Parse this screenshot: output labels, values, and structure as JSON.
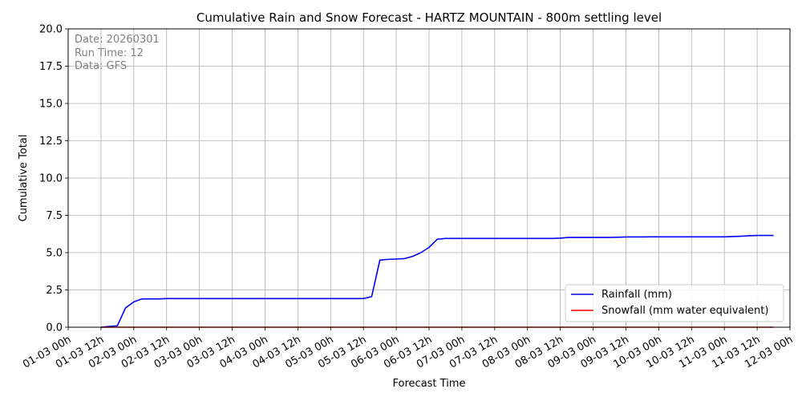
{
  "chart_data": {
    "type": "line",
    "title": "Cumulative Rain and Snow Forecast - HARTZ MOUNTAIN - 800m settling level",
    "xlabel": "Forecast Time",
    "ylabel": "Cumulative Total",
    "ylim": [
      0,
      20
    ],
    "yticks": [
      "0.0",
      "2.5",
      "5.0",
      "7.5",
      "10.0",
      "12.5",
      "15.0",
      "17.5",
      "20.0"
    ],
    "xlim": [
      0,
      264
    ],
    "xticks": [
      "01-03 00h",
      "01-03 12h",
      "02-03 00h",
      "02-03 12h",
      "03-03 00h",
      "03-03 12h",
      "04-03 00h",
      "04-03 12h",
      "05-03 00h",
      "05-03 12h",
      "06-03 00h",
      "06-03 12h",
      "07-03 00h",
      "07-03 12h",
      "08-03 00h",
      "08-03 12h",
      "09-03 00h",
      "09-03 12h",
      "10-03 00h",
      "10-03 12h",
      "11-03 00h",
      "11-03 12h",
      "12-03 00h"
    ],
    "grid": true,
    "legend_position": "bottom-right",
    "annotation": [
      "Date: 20260301",
      "Run Time: 12",
      "Data: GFS"
    ],
    "series": [
      {
        "name": "Rainfall (mm)",
        "color": "#0000ff",
        "x": [
          12,
          15,
          18,
          21,
          24,
          27,
          30,
          33,
          36,
          39,
          42,
          45,
          48,
          51,
          54,
          57,
          60,
          63,
          66,
          69,
          72,
          75,
          78,
          81,
          84,
          87,
          90,
          93,
          96,
          99,
          102,
          105,
          108,
          111,
          114,
          117,
          120,
          123,
          126,
          129,
          132,
          135,
          138,
          141,
          144,
          147,
          150,
          153,
          156,
          159,
          162,
          165,
          168,
          171,
          174,
          177,
          180,
          183,
          186,
          189,
          192,
          195,
          198,
          201,
          204,
          207,
          210,
          213,
          216,
          219,
          222,
          225,
          228,
          231,
          234,
          237,
          240,
          243,
          246,
          249,
          252,
          255,
          258
        ],
        "y": [
          0.0,
          0.05,
          0.1,
          1.3,
          1.7,
          1.9,
          1.9,
          1.9,
          1.92,
          1.92,
          1.92,
          1.92,
          1.92,
          1.92,
          1.92,
          1.92,
          1.92,
          1.92,
          1.92,
          1.92,
          1.92,
          1.92,
          1.92,
          1.92,
          1.92,
          1.92,
          1.92,
          1.92,
          1.92,
          1.92,
          1.92,
          1.92,
          1.92,
          2.05,
          4.5,
          4.55,
          4.57,
          4.6,
          4.75,
          5.0,
          5.35,
          5.9,
          5.95,
          5.95,
          5.95,
          5.95,
          5.95,
          5.95,
          5.95,
          5.95,
          5.95,
          5.95,
          5.95,
          5.95,
          5.95,
          5.95,
          5.97,
          6.02,
          6.02,
          6.02,
          6.02,
          6.02,
          6.02,
          6.03,
          6.05,
          6.05,
          6.05,
          6.06,
          6.06,
          6.06,
          6.06,
          6.06,
          6.06,
          6.06,
          6.06,
          6.06,
          6.06,
          6.08,
          6.1,
          6.13,
          6.15,
          6.15,
          6.15
        ]
      },
      {
        "name": "Snowfall (mm water equivalent)",
        "color": "#ff0000",
        "x": [
          12,
          258
        ],
        "y": [
          0.0,
          0.0
        ]
      }
    ]
  }
}
